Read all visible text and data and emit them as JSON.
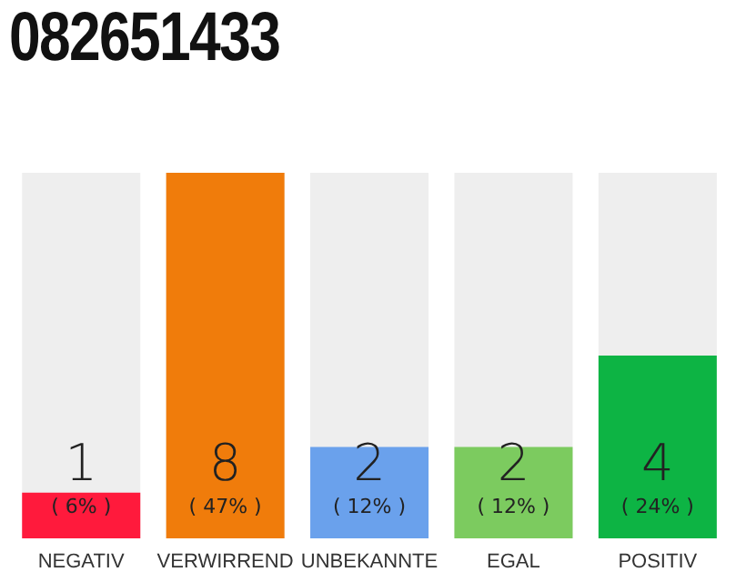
{
  "chart_data": {
    "type": "bar",
    "title": "082651433",
    "categories": [
      "NEGATIV",
      "VERWIRREND",
      "UNBEKANNTE",
      "EGAL",
      "POSITIV"
    ],
    "values": [
      1,
      8,
      2,
      2,
      4
    ],
    "colors": [
      "#ff1a3c",
      "#f07c0b",
      "#6aa1ec",
      "#7ccb5f",
      "#0db444"
    ],
    "value_labels": [
      "1\n( 6% )",
      "8\n( 47% )",
      "2\n( 12% )",
      "2\n( 12% )",
      "4\n( 24% )"
    ],
    "grid": false,
    "legend": false
  }
}
